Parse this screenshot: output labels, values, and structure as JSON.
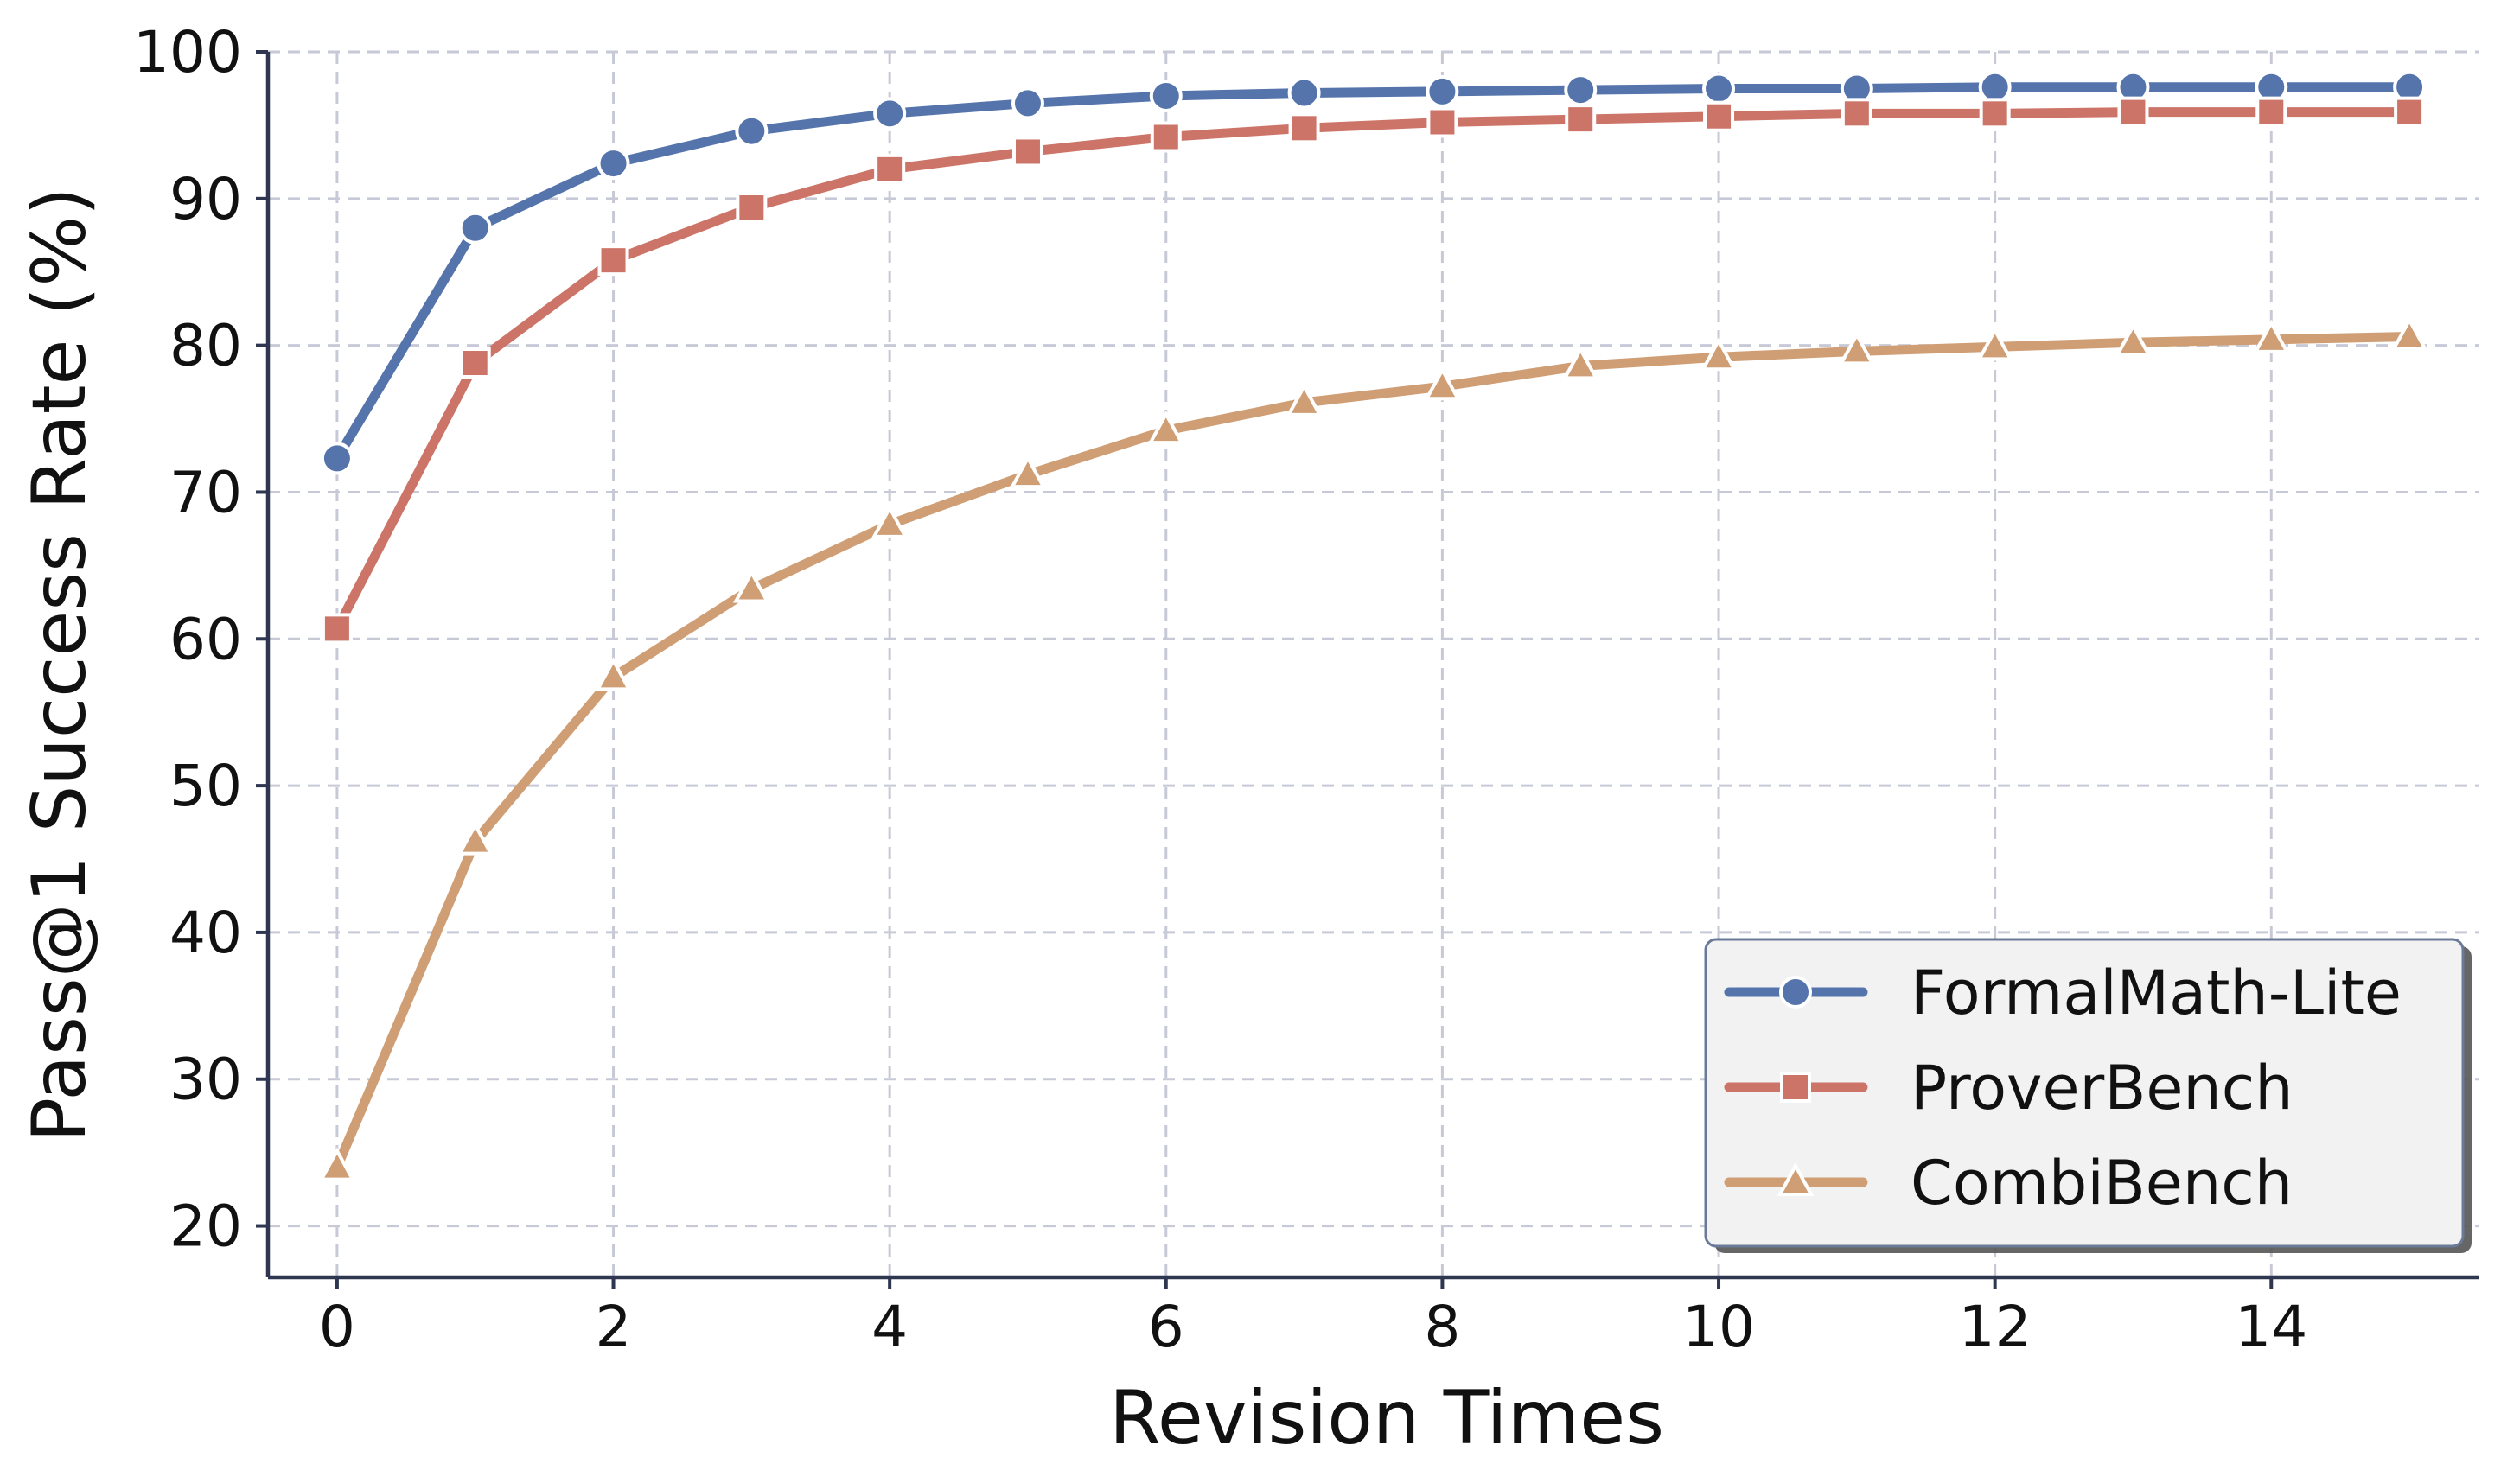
{
  "chart_data": {
    "type": "line",
    "title": "",
    "xlabel": "Revision Times",
    "ylabel": "Pass@1 Success Rate (%)",
    "xlim": [
      -0.5,
      15.5
    ],
    "ylim": [
      16.5,
      100.0
    ],
    "xticks": [
      0,
      2,
      4,
      6,
      8,
      10,
      12,
      14
    ],
    "yticks": [
      20,
      30,
      40,
      50,
      60,
      70,
      80,
      90,
      100
    ],
    "grid": true,
    "legend_position": "lower-right",
    "x": [
      0,
      1,
      2,
      3,
      4,
      5,
      6,
      7,
      8,
      9,
      10,
      11,
      12,
      13,
      14,
      15
    ],
    "series": [
      {
        "name": "FormalMath-Lite",
        "color": "#5574ac",
        "marker": "circle",
        "values": [
          72.3,
          88.0,
          92.4,
          94.6,
          95.8,
          96.5,
          97.0,
          97.2,
          97.3,
          97.4,
          97.5,
          97.5,
          97.6,
          97.6,
          97.6,
          97.6
        ]
      },
      {
        "name": "ProverBench",
        "color": "#cc7468",
        "marker": "square",
        "values": [
          60.7,
          78.8,
          85.8,
          89.4,
          92.0,
          93.2,
          94.2,
          94.8,
          95.2,
          95.4,
          95.6,
          95.8,
          95.8,
          95.9,
          95.9,
          95.9
        ]
      },
      {
        "name": "CombiBench",
        "color": "#cf9e74",
        "marker": "triangle",
        "values": [
          24.0,
          46.2,
          57.4,
          63.4,
          67.8,
          71.2,
          74.2,
          76.1,
          77.2,
          78.6,
          79.2,
          79.6,
          79.9,
          80.2,
          80.4,
          80.6
        ]
      }
    ]
  }
}
